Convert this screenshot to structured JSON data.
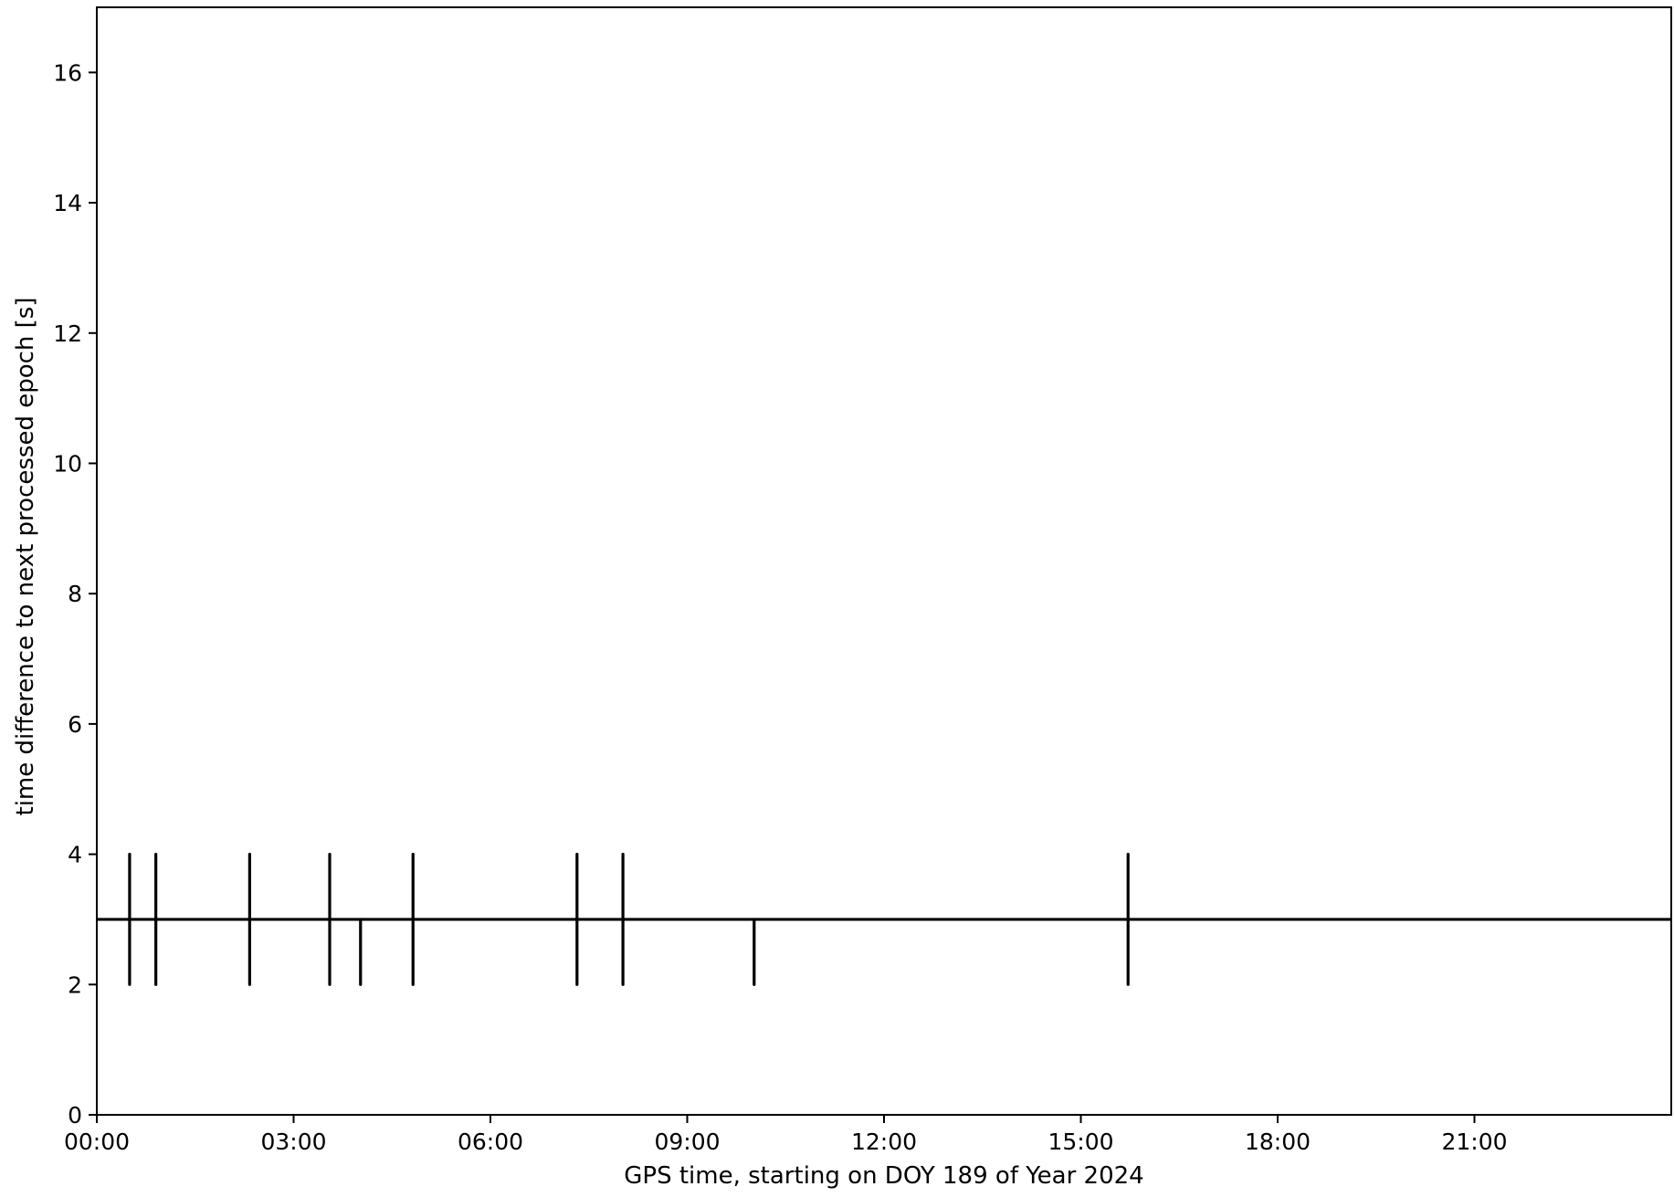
{
  "chart_data": {
    "type": "line",
    "title": "",
    "xlabel": "GPS time, starting on DOY 189 of Year 2024",
    "ylabel": "time difference to next processed epoch [s]",
    "x_unit": "hours",
    "xlim": [
      0,
      24
    ],
    "ylim": [
      0,
      17
    ],
    "x_ticks": [
      {
        "value": 0,
        "label": "00:00"
      },
      {
        "value": 3,
        "label": "03:00"
      },
      {
        "value": 6,
        "label": "06:00"
      },
      {
        "value": 9,
        "label": "09:00"
      },
      {
        "value": 12,
        "label": "12:00"
      },
      {
        "value": 15,
        "label": "15:00"
      },
      {
        "value": 18,
        "label": "18:00"
      },
      {
        "value": 21,
        "label": "21:00"
      }
    ],
    "y_ticks": [
      {
        "value": 0,
        "label": "0"
      },
      {
        "value": 2,
        "label": "2"
      },
      {
        "value": 4,
        "label": "4"
      },
      {
        "value": 6,
        "label": "6"
      },
      {
        "value": 8,
        "label": "8"
      },
      {
        "value": 10,
        "label": "10"
      },
      {
        "value": 12,
        "label": "12"
      },
      {
        "value": 14,
        "label": "14"
      },
      {
        "value": 16,
        "label": "16"
      }
    ],
    "grid": false,
    "legend": "none",
    "line_color": "#000000",
    "series": [
      {
        "baseline": 3,
        "spikes": [
          {
            "x": 0.5,
            "ymin": 2,
            "ymax": 4
          },
          {
            "x": 0.9,
            "ymin": 2,
            "ymax": 4
          },
          {
            "x": 2.33,
            "ymin": 2,
            "ymax": 4
          },
          {
            "x": 3.55,
            "ymin": 2,
            "ymax": 4
          },
          {
            "x": 4.02,
            "ymin": 2,
            "ymax": 3
          },
          {
            "x": 4.82,
            "ymin": 2,
            "ymax": 4
          },
          {
            "x": 7.32,
            "ymin": 2,
            "ymax": 4
          },
          {
            "x": 8.02,
            "ymin": 2,
            "ymax": 4
          },
          {
            "x": 10.02,
            "ymin": 2,
            "ymax": 3
          },
          {
            "x": 15.72,
            "ymin": 2,
            "ymax": 4
          }
        ]
      }
    ]
  }
}
